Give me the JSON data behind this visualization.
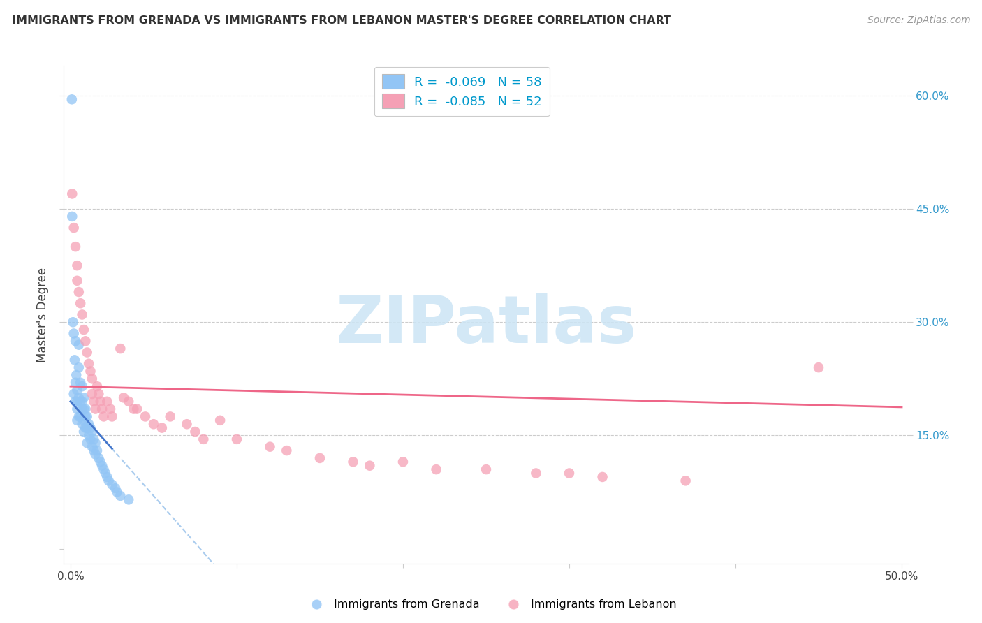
{
  "title": "IMMIGRANTS FROM GRENADA VS IMMIGRANTS FROM LEBANON MASTER'S DEGREE CORRELATION CHART",
  "source": "Source: ZipAtlas.com",
  "ylabel": "Master's Degree",
  "xlim": [
    -0.004,
    0.504
  ],
  "ylim": [
    -0.02,
    0.64
  ],
  "yticks": [
    0.0,
    0.15,
    0.3,
    0.45,
    0.6
  ],
  "xticks": [
    0.0,
    0.1,
    0.2,
    0.3,
    0.4,
    0.5
  ],
  "legend_line1_black": "R = ",
  "legend_r1_val": "-0.069",
  "legend_n1": "   N = ",
  "legend_n1_val": "58",
  "legend_r2_val": "-0.085",
  "legend_n2_val": "52",
  "color_grenada": "#92c5f5",
  "color_lebanon": "#f5a0b5",
  "color_trend_grenada_solid": "#4477cc",
  "color_trend_lebanon": "#ee6688",
  "color_dashed_grenada": "#aaccee",
  "watermark_color": "#cce5f5",
  "grenada_x": [
    0.0008,
    0.001,
    0.0015,
    0.002,
    0.002,
    0.0025,
    0.003,
    0.003,
    0.003,
    0.0035,
    0.004,
    0.004,
    0.004,
    0.004,
    0.005,
    0.005,
    0.005,
    0.005,
    0.006,
    0.006,
    0.006,
    0.007,
    0.007,
    0.007,
    0.007,
    0.008,
    0.008,
    0.008,
    0.008,
    0.009,
    0.009,
    0.009,
    0.01,
    0.01,
    0.01,
    0.011,
    0.011,
    0.012,
    0.012,
    0.013,
    0.013,
    0.014,
    0.014,
    0.015,
    0.015,
    0.016,
    0.017,
    0.018,
    0.019,
    0.02,
    0.021,
    0.022,
    0.023,
    0.025,
    0.027,
    0.028,
    0.03,
    0.035
  ],
  "grenada_y": [
    0.595,
    0.44,
    0.3,
    0.285,
    0.205,
    0.25,
    0.275,
    0.22,
    0.195,
    0.23,
    0.21,
    0.195,
    0.185,
    0.17,
    0.27,
    0.24,
    0.2,
    0.175,
    0.22,
    0.195,
    0.175,
    0.215,
    0.195,
    0.185,
    0.165,
    0.2,
    0.185,
    0.17,
    0.155,
    0.185,
    0.175,
    0.16,
    0.175,
    0.16,
    0.14,
    0.165,
    0.15,
    0.16,
    0.145,
    0.155,
    0.135,
    0.145,
    0.13,
    0.14,
    0.125,
    0.13,
    0.12,
    0.115,
    0.11,
    0.105,
    0.1,
    0.095,
    0.09,
    0.085,
    0.08,
    0.075,
    0.07,
    0.065
  ],
  "lebanon_x": [
    0.001,
    0.002,
    0.003,
    0.004,
    0.004,
    0.005,
    0.006,
    0.007,
    0.008,
    0.009,
    0.01,
    0.011,
    0.012,
    0.013,
    0.013,
    0.014,
    0.015,
    0.016,
    0.017,
    0.018,
    0.019,
    0.02,
    0.022,
    0.024,
    0.025,
    0.03,
    0.032,
    0.035,
    0.038,
    0.04,
    0.045,
    0.05,
    0.055,
    0.06,
    0.07,
    0.075,
    0.08,
    0.09,
    0.1,
    0.12,
    0.13,
    0.15,
    0.17,
    0.18,
    0.2,
    0.22,
    0.25,
    0.28,
    0.3,
    0.32,
    0.37,
    0.45
  ],
  "lebanon_y": [
    0.47,
    0.425,
    0.4,
    0.375,
    0.355,
    0.34,
    0.325,
    0.31,
    0.29,
    0.275,
    0.26,
    0.245,
    0.235,
    0.225,
    0.205,
    0.195,
    0.185,
    0.215,
    0.205,
    0.195,
    0.185,
    0.175,
    0.195,
    0.185,
    0.175,
    0.265,
    0.2,
    0.195,
    0.185,
    0.185,
    0.175,
    0.165,
    0.16,
    0.175,
    0.165,
    0.155,
    0.145,
    0.17,
    0.145,
    0.135,
    0.13,
    0.12,
    0.115,
    0.11,
    0.115,
    0.105,
    0.105,
    0.1,
    0.1,
    0.095,
    0.09,
    0.24
  ],
  "trend_gren_x0": 0.0,
  "trend_gren_x1": 0.025,
  "trend_gren_intercept": 0.195,
  "trend_gren_slope": -2.5,
  "trend_dashed_x1": 0.5,
  "trend_leb_x0": 0.0,
  "trend_leb_x1": 0.5,
  "trend_leb_intercept": 0.215,
  "trend_leb_slope": -0.055
}
